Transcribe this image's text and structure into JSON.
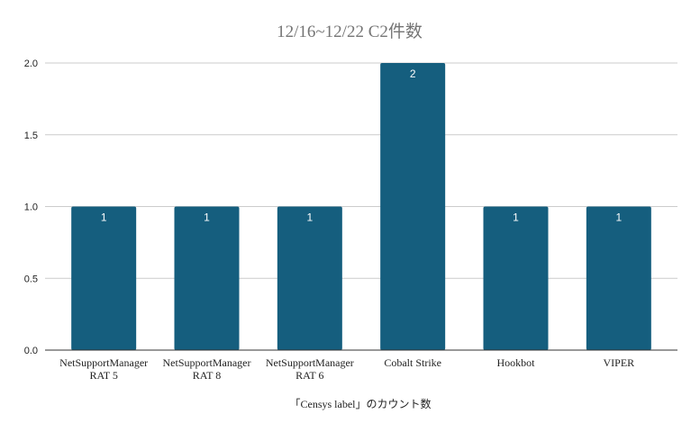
{
  "chart_data": {
    "type": "bar",
    "title": "12/16~12/22 C2件数",
    "xlabel": "「Censys label」のカウント数",
    "ylabel": "",
    "categories": [
      [
        "NetSupportManager",
        "RAT 5"
      ],
      [
        "NetSupportManager",
        "RAT 8"
      ],
      [
        "NetSupportManager",
        "RAT 6"
      ],
      [
        "Cobalt Strike"
      ],
      [
        "Hookbot"
      ],
      [
        "VIPER"
      ]
    ],
    "values": [
      1,
      1,
      1,
      2,
      1,
      1
    ],
    "ylim": [
      0,
      2
    ],
    "yticks": [
      "0.0",
      "0.5",
      "1.0",
      "1.5",
      "2.0"
    ],
    "ytick_values": [
      0,
      0.5,
      1,
      1.5,
      2
    ],
    "data_labels": [
      "1",
      "1",
      "1",
      "2",
      "1",
      "1"
    ],
    "bar_color": "#155e7e",
    "grid": true,
    "legend": "none"
  }
}
